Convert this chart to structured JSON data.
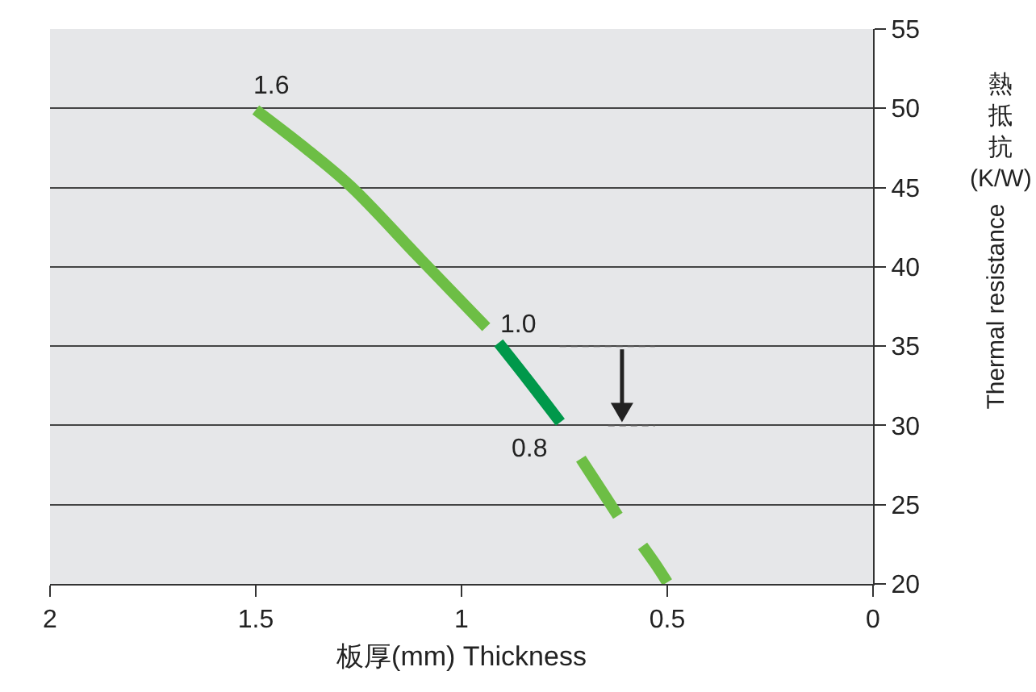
{
  "chart_data": {
    "type": "line",
    "xlabel": "板厚(mm) Thickness",
    "ylabel": "Thermal resistance",
    "series": [
      {
        "color": "#6dbe45",
        "x": [
          1.5,
          1.38,
          1.27,
          1.1,
          0.94,
          0.92,
          0.71,
          0.67,
          0.62,
          0.59,
          0.56,
          0.53,
          0.5
        ],
        "values": [
          49.9,
          47.5,
          45.1,
          40.5,
          36.2,
          null,
          27.9,
          26.3,
          24.3,
          null,
          22.4,
          21.3,
          20.1
        ]
      },
      {
        "color": "#00984a",
        "x": [
          0.91,
          0.84,
          0.76
        ],
        "values": [
          35.2,
          32.9,
          30.2
        ]
      }
    ],
    "annotations": [
      {
        "text": "1.6",
        "x": 1.5,
        "y": 50
      },
      {
        "text": "1.0",
        "x": 0.9,
        "y": 35
      },
      {
        "text": "0.8",
        "x": 0.77,
        "y": 30
      },
      "熱抵抗\n(K/W)"
    ],
    "xlim": [
      2,
      0
    ],
    "xticks": [
      2,
      1.5,
      1,
      0.5,
      0
    ],
    "ylim": [
      20,
      55
    ],
    "yticks": [
      20,
      25,
      30,
      35,
      40,
      45,
      50,
      55
    ],
    "grid": "y",
    "marker": "none",
    "line_style": "solid"
  }
}
